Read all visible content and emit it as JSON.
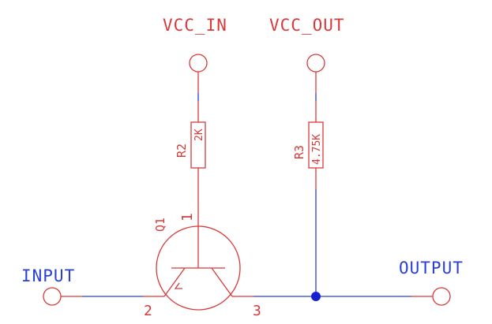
{
  "nets": {
    "vcc_in": "VCC_IN",
    "vcc_out": "VCC_OUT"
  },
  "ports": {
    "input": "INPUT",
    "output": "OUTPUT"
  },
  "r2": {
    "ref": "R2",
    "value": "2K"
  },
  "r3": {
    "ref": "R3",
    "value": "4.75K"
  },
  "q1": {
    "ref": "Q1",
    "pin_collector": "1",
    "pin_base": "2",
    "pin_emitter": "3"
  },
  "colors": {
    "component": "#d83a3a",
    "wire": "#2a3fd6",
    "junction": "#1a1fd0"
  }
}
